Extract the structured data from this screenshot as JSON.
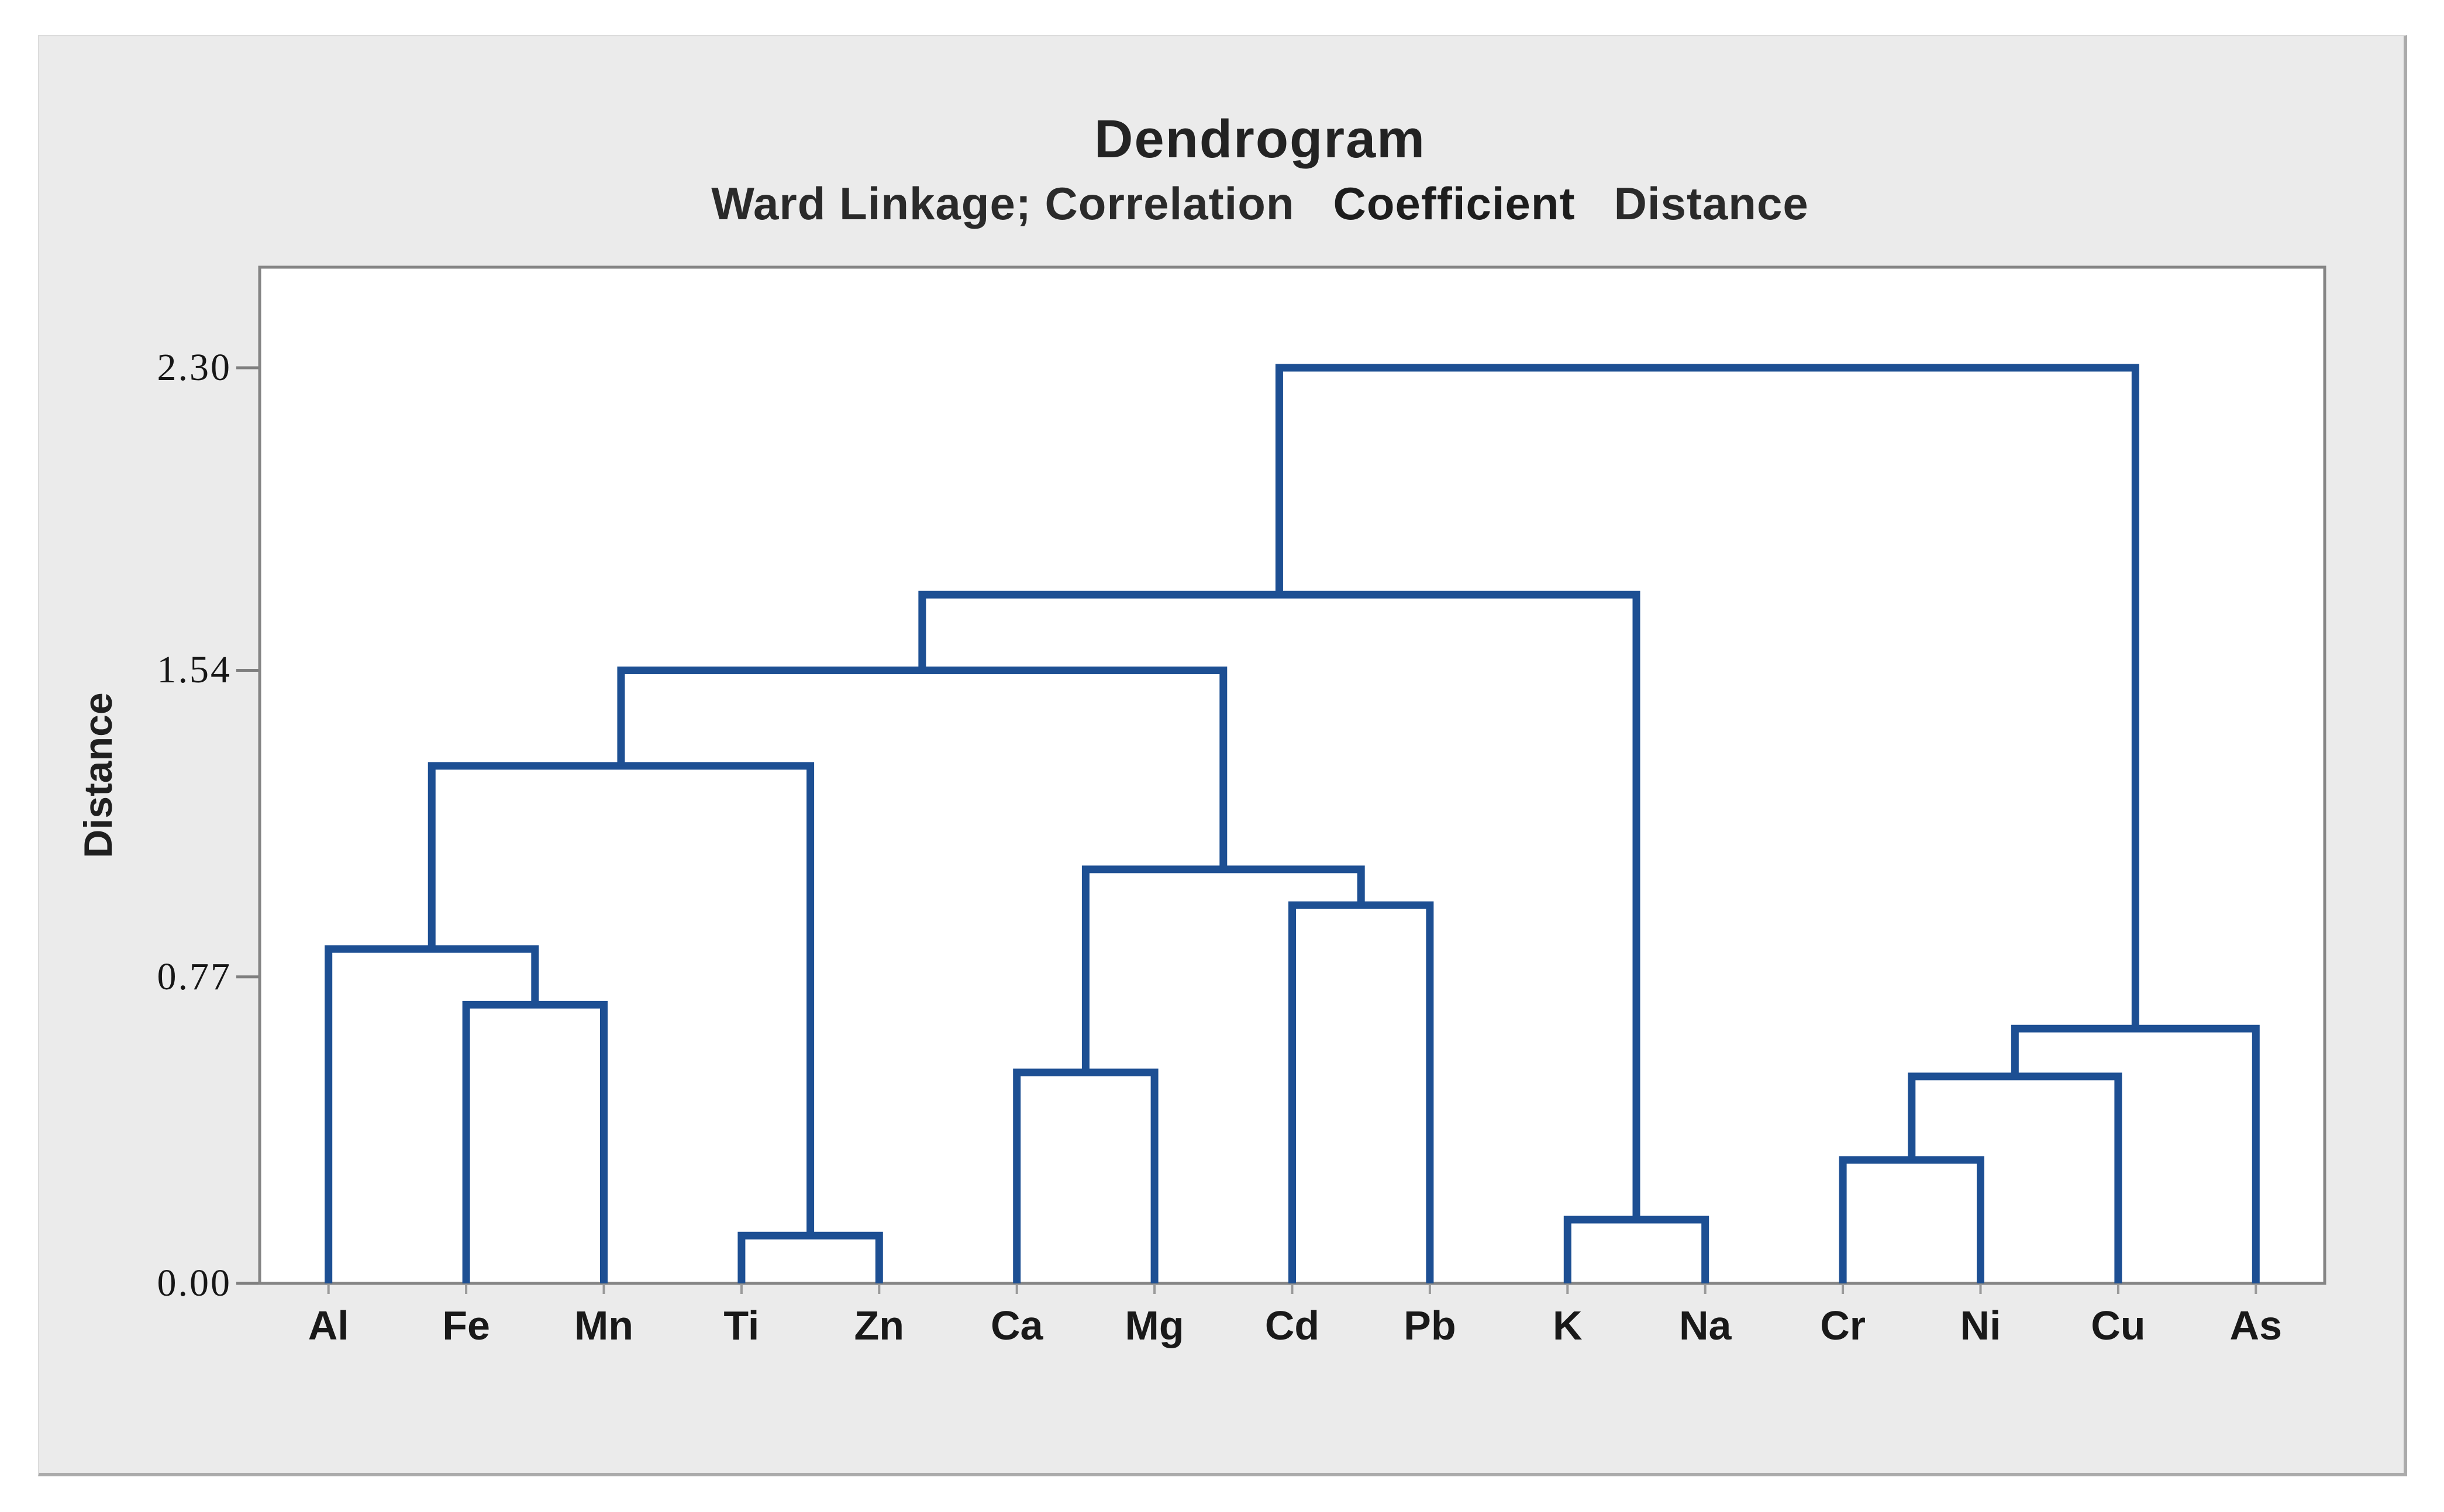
{
  "chart_data": {
    "type": "dendrogram",
    "title": "Dendrogram",
    "subtitle_parts": [
      "Ward Linkage; Correlation",
      "Coefficient",
      "Distance"
    ],
    "ylabel": "Distance",
    "ylim": [
      0,
      2.3
    ],
    "yticks": [
      {
        "value": 0.0,
        "label": "0.00"
      },
      {
        "value": 0.77,
        "label": "0.77"
      },
      {
        "value": 1.54,
        "label": "1.54"
      },
      {
        "value": 2.3,
        "label": "2.30"
      }
    ],
    "grid": "off",
    "legend": "none",
    "leaves": [
      "Al",
      "Fe",
      "Mn",
      "Ti",
      "Zn",
      "Ca",
      "Mg",
      "Cd",
      "Pb",
      "K",
      "Na",
      "Cr",
      "Ni",
      "Cu",
      "As"
    ],
    "merges_note": "each merge joins cluster ids a,b at given distance; leaf ids 0-14, merge i creates id 15+i",
    "merges": [
      {
        "a": 3,
        "b": 4,
        "height": 0.12
      },
      {
        "a": 9,
        "b": 10,
        "height": 0.16
      },
      {
        "a": 11,
        "b": 12,
        "height": 0.31
      },
      {
        "a": 17,
        "b": 13,
        "height": 0.52
      },
      {
        "a": 5,
        "b": 6,
        "height": 0.53
      },
      {
        "a": 18,
        "b": 14,
        "height": 0.64
      },
      {
        "a": 1,
        "b": 2,
        "height": 0.7
      },
      {
        "a": 0,
        "b": 21,
        "height": 0.84
      },
      {
        "a": 7,
        "b": 8,
        "height": 0.95
      },
      {
        "a": 19,
        "b": 23,
        "height": 1.04
      },
      {
        "a": 22,
        "b": 15,
        "height": 1.3
      },
      {
        "a": 25,
        "b": 24,
        "height": 1.54
      },
      {
        "a": 26,
        "b": 16,
        "height": 1.73
      },
      {
        "a": 27,
        "b": 20,
        "height": 2.3
      }
    ],
    "line_color": "#1d4f93",
    "axis_color": "#7f7f7f",
    "panel_color": "#ebebeb",
    "plot_bg_color": "#ffffff"
  }
}
